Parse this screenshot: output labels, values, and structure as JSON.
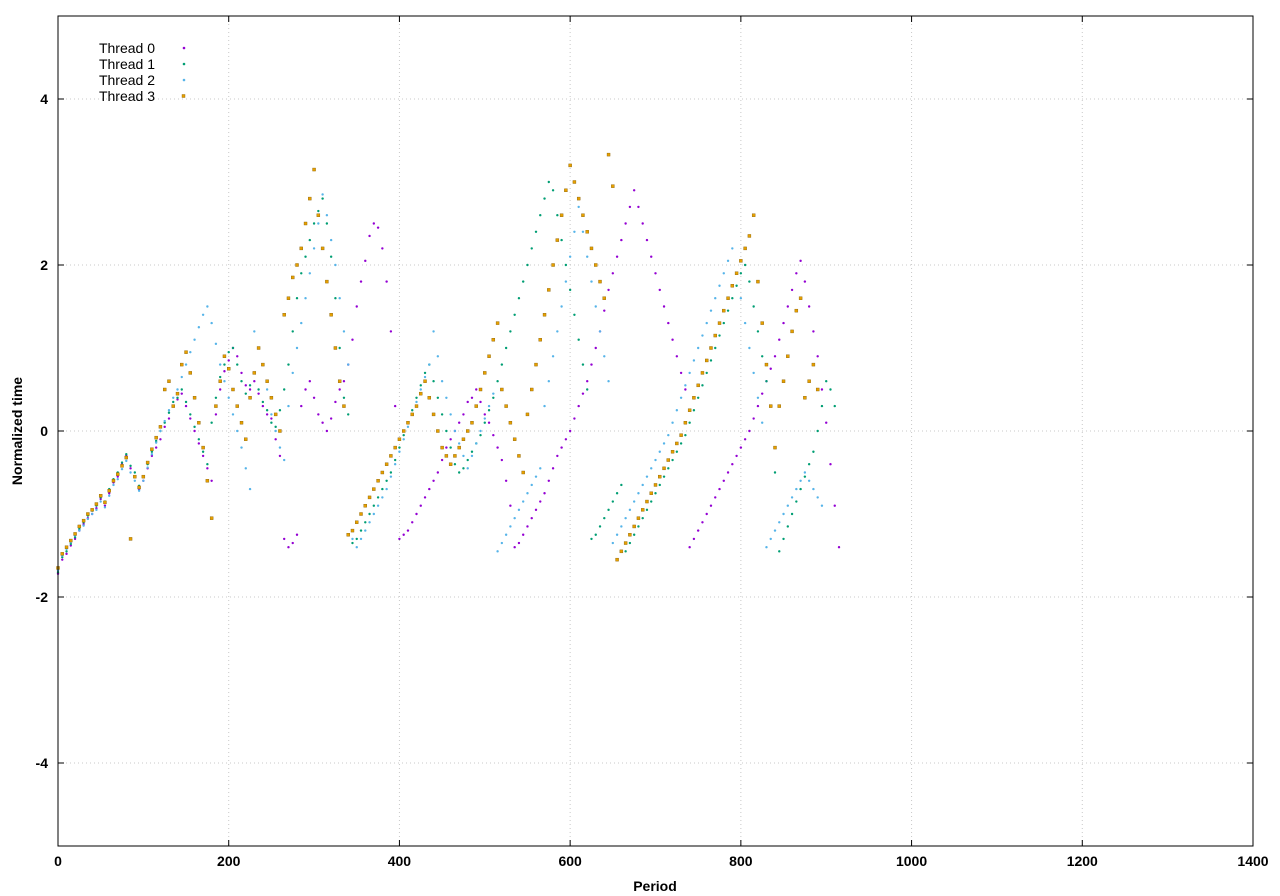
{
  "chart_data": {
    "type": "scatter",
    "title": "",
    "xlabel": "Period",
    "ylabel": "Normalized time",
    "xlim": [
      0,
      1400
    ],
    "ylim": [
      -5,
      5
    ],
    "xticks": [
      0,
      200,
      400,
      600,
      800,
      1000,
      1200,
      1400
    ],
    "yticks": [
      -4,
      -2,
      0,
      2,
      4
    ],
    "grid": true,
    "legend_position": "top-left",
    "x_step": 5,
    "series": [
      {
        "name": "Thread 0",
        "color": "#9400d3",
        "marker": "dot",
        "x_start": 0,
        "y": [
          -1.72,
          -1.55,
          -1.48,
          -1.38,
          -1.3,
          -1.2,
          -1.12,
          -1.05,
          -1.0,
          -0.93,
          -0.82,
          -0.9,
          -0.75,
          -0.62,
          -0.55,
          -0.4,
          -0.3,
          -0.45,
          -0.55,
          -0.7,
          -0.6,
          -0.45,
          -0.3,
          -0.2,
          -0.1,
          0.05,
          0.15,
          0.3,
          0.38,
          0.45,
          0.3,
          0.15,
          0.0,
          -0.15,
          -0.3,
          -0.45,
          -0.6,
          0.2,
          0.5,
          0.72,
          0.85,
          1.0,
          0.9,
          0.7,
          0.55,
          0.5,
          0.6,
          0.45,
          0.3,
          0.2,
          0.15,
          -0.1,
          -0.3,
          -1.3,
          -1.4,
          -1.35,
          -1.25,
          0.3,
          0.5,
          0.6,
          0.4,
          0.2,
          0.1,
          0.0,
          0.15,
          0.35,
          0.5,
          0.6,
          0.8,
          1.1,
          1.5,
          1.8,
          2.05,
          2.35,
          2.5,
          2.45,
          2.2,
          1.8,
          1.2,
          0.3,
          -1.3,
          -1.25,
          -1.2,
          -1.1,
          -1.0,
          -0.9,
          -0.8,
          -0.7,
          -0.6,
          -0.5,
          -0.35,
          -0.2,
          -0.1,
          0.0,
          0.1,
          0.2,
          0.35,
          0.4,
          0.5,
          0.35,
          0.2,
          0.1,
          -0.05,
          -0.2,
          -0.35,
          -0.6,
          -0.9,
          -1.4,
          -1.35,
          -1.25,
          -1.15,
          -1.05,
          -0.95,
          -0.85,
          -0.75,
          -0.6,
          -0.45,
          -0.3,
          -0.2,
          -0.1,
          0.0,
          0.15,
          0.3,
          0.45,
          0.6,
          0.8,
          1.0,
          1.2,
          1.45,
          1.7,
          1.9,
          2.1,
          2.3,
          2.5,
          2.7,
          2.9,
          2.7,
          2.5,
          2.3,
          2.1,
          1.9,
          1.7,
          1.5,
          1.3,
          1.1,
          0.9,
          0.7,
          0.5,
          -1.4,
          -1.3,
          -1.2,
          -1.1,
          -1.0,
          -0.9,
          -0.8,
          -0.7,
          -0.6,
          -0.5,
          -0.4,
          -0.3,
          -0.2,
          -0.1,
          0.0,
          0.15,
          0.3,
          0.45,
          0.6,
          0.75,
          0.9,
          1.1,
          1.3,
          1.5,
          1.7,
          1.9,
          2.05,
          1.8,
          1.5,
          1.2,
          0.9,
          0.5,
          0.1,
          -0.4,
          -0.9,
          -1.4
        ]
      },
      {
        "name": "Thread 1",
        "color": "#009e73",
        "marker": "dot",
        "x_start": 0,
        "y": [
          -1.7,
          -1.52,
          -1.45,
          -1.36,
          -1.28,
          -1.18,
          -1.1,
          -1.02,
          -0.96,
          -0.9,
          -0.8,
          -0.85,
          -0.7,
          -0.58,
          -0.5,
          -0.38,
          -0.28,
          -0.42,
          -0.5,
          -0.66,
          -0.55,
          -0.4,
          -0.25,
          -0.12,
          0.0,
          0.1,
          0.22,
          0.35,
          0.4,
          0.5,
          0.35,
          0.2,
          0.05,
          -0.1,
          -0.25,
          -0.4,
          0.1,
          0.4,
          0.65,
          0.8,
          0.95,
          1.0,
          0.8,
          0.6,
          0.45,
          0.55,
          0.7,
          0.5,
          0.35,
          0.25,
          0.1,
          0.05,
          0.25,
          0.5,
          0.8,
          1.2,
          1.6,
          1.9,
          2.1,
          2.3,
          2.5,
          2.65,
          2.8,
          2.5,
          2.1,
          1.6,
          1.0,
          0.4,
          0.2,
          -1.35,
          -1.3,
          -1.2,
          -1.1,
          -1.0,
          -0.9,
          -0.8,
          -0.7,
          -0.6,
          -0.5,
          -0.35,
          -0.2,
          -0.05,
          0.1,
          0.25,
          0.4,
          0.55,
          0.7,
          0.8,
          0.6,
          0.4,
          0.2,
          0.0,
          -0.2,
          -0.4,
          -0.5,
          -0.45,
          -0.35,
          -0.25,
          -0.15,
          -0.05,
          0.1,
          0.25,
          0.4,
          0.6,
          0.8,
          1.0,
          1.2,
          1.4,
          1.6,
          1.8,
          2.0,
          2.2,
          2.4,
          2.6,
          2.8,
          3.0,
          2.9,
          2.6,
          2.3,
          2.0,
          1.7,
          1.4,
          1.1,
          0.8,
          0.5,
          -1.3,
          -1.25,
          -1.15,
          -1.05,
          -0.95,
          -0.85,
          -0.75,
          -0.65,
          -1.45,
          -1.35,
          -1.25,
          -1.15,
          -1.05,
          -0.95,
          -0.85,
          -0.75,
          -0.65,
          -0.55,
          -0.45,
          -0.35,
          -0.25,
          -0.15,
          -0.05,
          0.1,
          0.25,
          0.4,
          0.55,
          0.7,
          0.85,
          1.0,
          1.15,
          1.3,
          1.45,
          1.6,
          1.75,
          1.9,
          2.0,
          1.8,
          1.5,
          1.2,
          0.9,
          0.6,
          0.3,
          -0.5,
          -1.45,
          -1.3,
          -1.15,
          -1.0,
          -0.85,
          -0.7,
          -0.55,
          -0.4,
          -0.25,
          0.0,
          0.3,
          0.6,
          0.5,
          0.3
        ]
      },
      {
        "name": "Thread 2",
        "color": "#56b4e9",
        "marker": "dot",
        "x_start": 0,
        "y": [
          -1.68,
          -1.5,
          -1.42,
          -1.34,
          -1.26,
          -1.2,
          -1.14,
          -1.06,
          -1.0,
          -0.95,
          -0.85,
          -0.92,
          -0.78,
          -0.65,
          -0.58,
          -0.46,
          -0.36,
          -0.5,
          -0.6,
          -0.72,
          -0.6,
          -0.44,
          -0.28,
          -0.14,
          0.0,
          0.12,
          0.25,
          0.4,
          0.5,
          0.65,
          0.8,
          0.95,
          1.1,
          1.25,
          1.4,
          1.5,
          1.3,
          1.05,
          0.8,
          0.6,
          0.4,
          0.2,
          0.0,
          -0.2,
          -0.45,
          -0.7,
          1.2,
          1.0,
          0.8,
          0.5,
          0.2,
          0.0,
          -0.2,
          -0.35,
          0.3,
          0.7,
          1.0,
          1.3,
          1.6,
          1.9,
          2.2,
          2.5,
          2.85,
          2.6,
          2.3,
          2.0,
          1.6,
          1.2,
          0.8,
          -1.3,
          -1.4,
          -1.3,
          -1.2,
          -1.1,
          -1.0,
          -0.9,
          -0.8,
          -0.7,
          -0.55,
          -0.4,
          -0.25,
          -0.1,
          0.05,
          0.2,
          0.35,
          0.5,
          0.65,
          0.8,
          1.2,
          0.9,
          0.6,
          0.4,
          0.2,
          0.0,
          -0.15,
          -0.3,
          -0.45,
          -0.3,
          -0.15,
          0.0,
          0.15,
          0.3,
          0.45,
          -1.45,
          -1.35,
          -1.25,
          -1.15,
          -1.05,
          -0.95,
          -0.85,
          -0.75,
          -0.65,
          -0.55,
          -0.45,
          0.3,
          0.6,
          0.9,
          1.2,
          1.5,
          1.8,
          2.1,
          2.4,
          2.7,
          2.4,
          2.1,
          1.8,
          1.5,
          1.2,
          0.9,
          0.6,
          -1.35,
          -1.25,
          -1.15,
          -1.05,
          -0.95,
          -0.85,
          -0.75,
          -0.65,
          -0.55,
          -0.45,
          -0.35,
          -0.25,
          -0.15,
          -0.05,
          0.1,
          0.25,
          0.4,
          0.55,
          0.7,
          0.85,
          1.0,
          1.15,
          1.3,
          1.45,
          1.6,
          1.75,
          1.9,
          2.05,
          2.2,
          1.9,
          1.6,
          1.3,
          1.0,
          0.7,
          0.4,
          0.1,
          -1.4,
          -1.3,
          -1.2,
          -1.1,
          -1.0,
          -0.9,
          -0.8,
          -0.7,
          -0.6,
          -0.5,
          -0.6,
          -0.7,
          -0.8,
          -0.9
        ]
      },
      {
        "name": "Thread 3",
        "color": "#e69f00",
        "marker": "square",
        "x_start": 0,
        "y": [
          -1.65,
          -1.48,
          -1.4,
          -1.32,
          -1.24,
          -1.15,
          -1.08,
          -1.0,
          -0.95,
          -0.88,
          -0.78,
          -0.86,
          -0.72,
          -0.6,
          -0.52,
          -0.42,
          -0.32,
          -1.3,
          -0.55,
          -0.68,
          -0.55,
          -0.38,
          -0.22,
          -0.08,
          0.05,
          0.5,
          0.6,
          0.3,
          0.45,
          0.8,
          0.95,
          0.7,
          0.4,
          0.1,
          -0.2,
          -0.6,
          -1.05,
          0.3,
          0.6,
          0.9,
          0.75,
          0.5,
          0.3,
          0.1,
          -0.1,
          0.4,
          0.7,
          1.0,
          0.8,
          0.6,
          0.4,
          0.2,
          0.0,
          1.4,
          1.6,
          1.85,
          2.0,
          2.2,
          2.5,
          2.8,
          3.15,
          2.6,
          2.2,
          1.8,
          1.4,
          1.0,
          0.6,
          0.3,
          -1.25,
          -1.2,
          -1.1,
          -1.0,
          -0.9,
          -0.8,
          -0.7,
          -0.6,
          -0.5,
          -0.4,
          -0.3,
          -0.2,
          -0.1,
          0.0,
          0.1,
          0.2,
          0.3,
          0.45,
          0.6,
          0.4,
          0.2,
          0.0,
          -0.2,
          -0.3,
          -0.4,
          -0.3,
          -0.2,
          -0.1,
          0.0,
          0.1,
          0.3,
          0.5,
          0.7,
          0.9,
          1.1,
          1.3,
          0.5,
          0.3,
          0.1,
          -0.1,
          -0.3,
          -0.5,
          0.2,
          0.5,
          0.8,
          1.1,
          1.4,
          1.7,
          2.0,
          2.3,
          2.6,
          2.9,
          3.2,
          3.0,
          2.8,
          2.6,
          2.4,
          2.2,
          2.0,
          1.8,
          1.6,
          3.33,
          2.95,
          -1.55,
          -1.45,
          -1.35,
          -1.25,
          -1.15,
          -1.05,
          -0.95,
          -0.85,
          -0.75,
          -0.65,
          -0.55,
          -0.45,
          -0.35,
          -0.25,
          -0.15,
          -0.05,
          0.1,
          0.25,
          0.4,
          0.55,
          0.7,
          0.85,
          1.0,
          1.15,
          1.3,
          1.45,
          1.6,
          1.75,
          1.9,
          2.05,
          2.2,
          2.35,
          2.6,
          1.8,
          1.3,
          0.8,
          0.3,
          -0.2,
          0.3,
          0.6,
          0.9,
          1.2,
          1.45,
          1.6,
          0.4,
          0.6,
          0.8,
          0.5
        ]
      }
    ]
  }
}
